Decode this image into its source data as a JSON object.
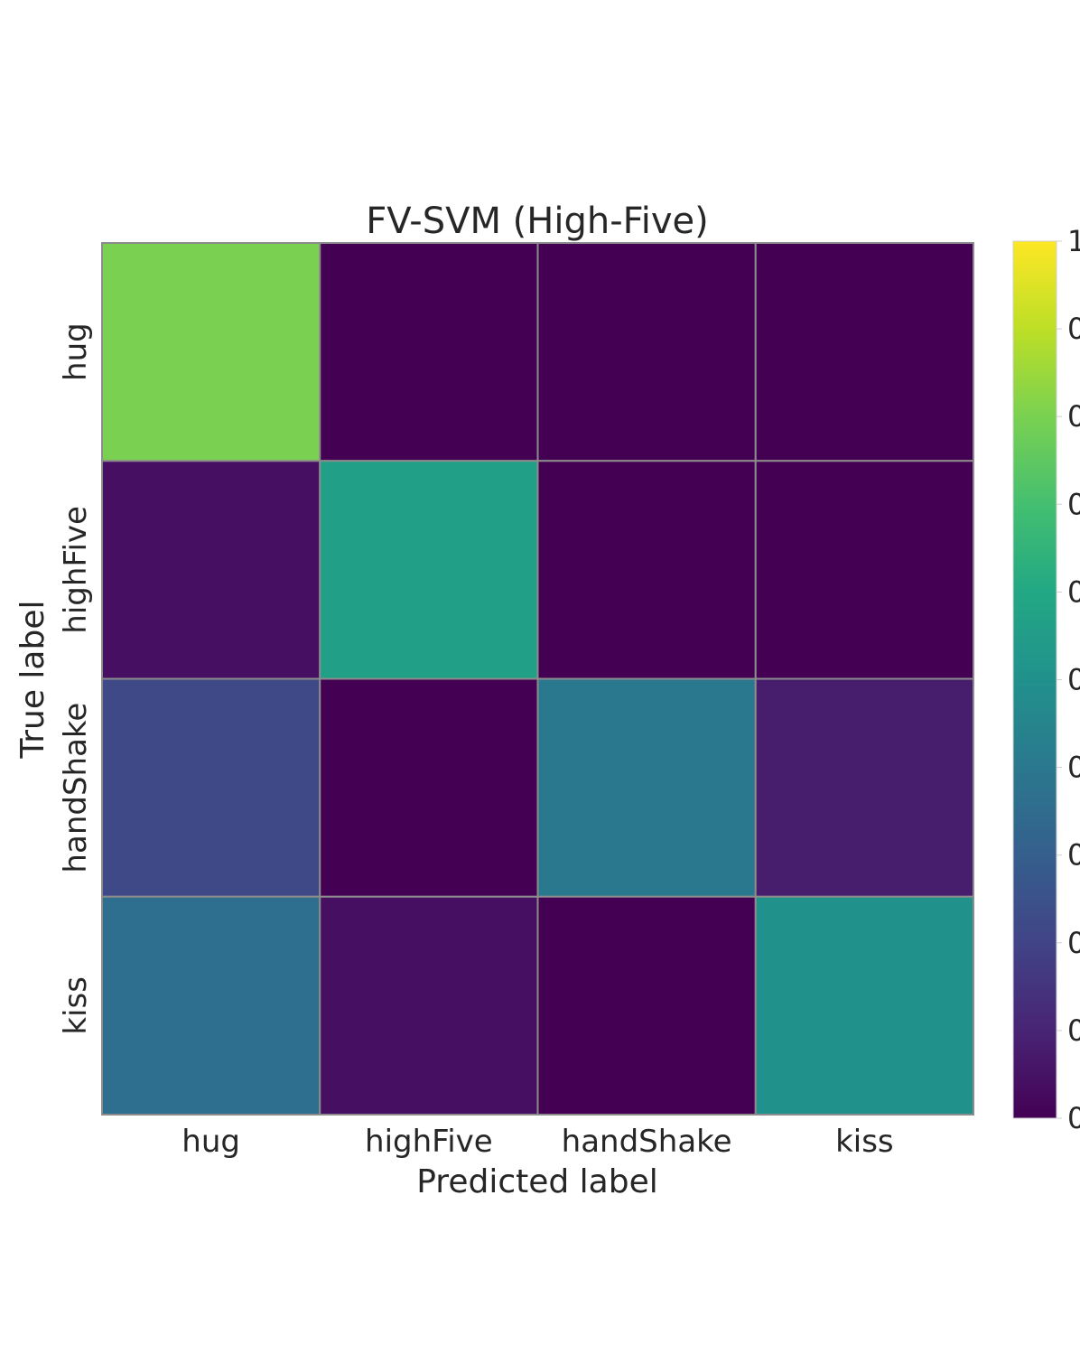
{
  "chart_data": {
    "type": "heatmap",
    "title": "FV-SVM (High-Five)",
    "xlabel": "Predicted label",
    "ylabel": "True label",
    "x_categories": [
      "hug",
      "highFive",
      "handShake",
      "kiss"
    ],
    "y_categories": [
      "hug",
      "highFive",
      "handShake",
      "kiss"
    ],
    "values": [
      [
        0.8,
        0.0,
        0.0,
        0.0
      ],
      [
        0.04,
        0.56,
        0.0,
        0.0
      ],
      [
        0.22,
        0.0,
        0.4,
        0.08
      ],
      [
        0.36,
        0.04,
        0.0,
        0.5
      ]
    ],
    "colormap": "viridis",
    "vmin": 0,
    "vmax": 1,
    "colorbar_tick_labels": [
      "1",
      "0",
      "0",
      "0",
      "0",
      "0",
      "0",
      "0",
      "0",
      "0",
      "0"
    ],
    "grid": true,
    "gridline_color": "#8c8c8c"
  }
}
